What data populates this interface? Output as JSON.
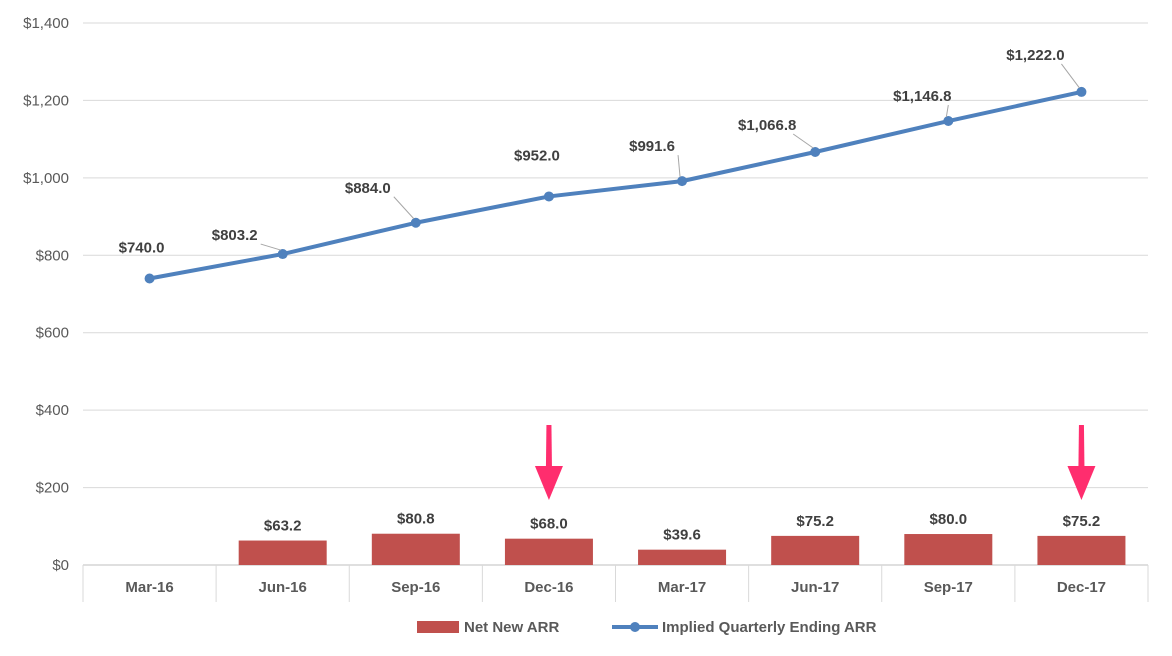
{
  "chart_data": {
    "type": "bar",
    "categories": [
      "Mar-16",
      "Jun-16",
      "Sep-16",
      "Dec-16",
      "Mar-17",
      "Jun-17",
      "Sep-17",
      "Dec-17"
    ],
    "series": [
      {
        "name": "Net New ARR",
        "type": "bar",
        "color": "#C0504D",
        "values": [
          null,
          63.2,
          80.8,
          68.0,
          39.6,
          75.2,
          80.0,
          75.2
        ],
        "labels": [
          "",
          "$63.2",
          "$80.8",
          "$68.0",
          "$39.6",
          "$75.2",
          "$80.0",
          "$75.2"
        ]
      },
      {
        "name": "Implied Quarterly Ending ARR",
        "type": "line",
        "color": "#4F81BD",
        "values": [
          740.0,
          803.2,
          884.0,
          952.0,
          991.6,
          1066.8,
          1146.8,
          1222.0
        ],
        "labels": [
          "$740.0",
          "$803.2",
          "$884.0",
          "$952.0",
          "$991.6",
          "$1,066.8",
          "$1,146.8",
          "$1,222.0"
        ]
      }
    ],
    "y_ticks": [
      "$0",
      "$200",
      "$400",
      "$600",
      "$800",
      "$1,000",
      "$1,200",
      "$1,400"
    ],
    "ylim": [
      0,
      1400
    ],
    "grid": true,
    "legend_position": "bottom",
    "annotations": [
      {
        "type": "arrow",
        "category": "Dec-16",
        "color": "#FF2D6E"
      },
      {
        "type": "arrow",
        "category": "Dec-17",
        "color": "#FF2D6E"
      }
    ],
    "title": "",
    "xlabel": "",
    "ylabel": ""
  }
}
